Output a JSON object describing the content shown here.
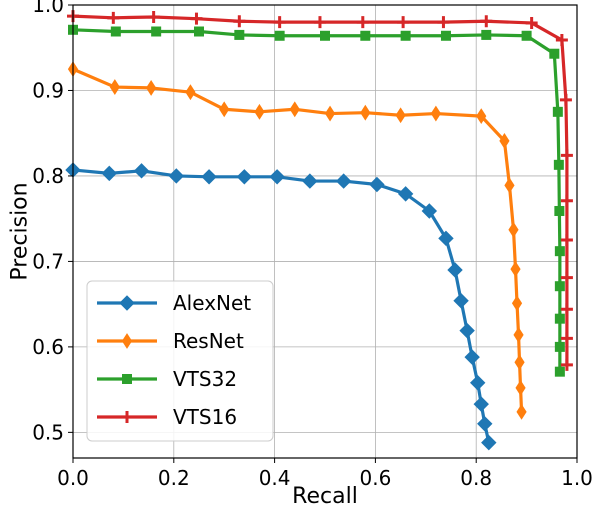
{
  "chart_data": {
    "type": "line",
    "title": "",
    "xlabel": "Recall",
    "ylabel": "Precision",
    "xlim": [
      0.0,
      1.0
    ],
    "ylim": [
      0.47,
      1.0
    ],
    "xticks": [
      {
        "value": 0.0,
        "label": "0.0"
      },
      {
        "value": 0.2,
        "label": "0.2"
      },
      {
        "value": 0.4,
        "label": "0.4"
      },
      {
        "value": 0.6,
        "label": "0.6"
      },
      {
        "value": 0.8,
        "label": "0.8"
      },
      {
        "value": 1.0,
        "label": "1.0"
      }
    ],
    "yticks": [
      {
        "value": 0.5,
        "label": "0.5"
      },
      {
        "value": 0.6,
        "label": "0.6"
      },
      {
        "value": 0.7,
        "label": "0.7"
      },
      {
        "value": 0.8,
        "label": "0.8"
      },
      {
        "value": 0.9,
        "label": "0.9"
      },
      {
        "value": 1.0,
        "label": "1.0"
      }
    ],
    "grid": true,
    "legend_position": "lower-left",
    "series": [
      {
        "name": "AlexNet",
        "color": "#1f77b4",
        "marker": "diamond",
        "points": [
          [
            0.0,
            0.807
          ],
          [
            0.072,
            0.803
          ],
          [
            0.136,
            0.806
          ],
          [
            0.205,
            0.8
          ],
          [
            0.27,
            0.799
          ],
          [
            0.34,
            0.799
          ],
          [
            0.405,
            0.799
          ],
          [
            0.47,
            0.794
          ],
          [
            0.537,
            0.794
          ],
          [
            0.603,
            0.79
          ],
          [
            0.66,
            0.779
          ],
          [
            0.707,
            0.759
          ],
          [
            0.74,
            0.727
          ],
          [
            0.758,
            0.69
          ],
          [
            0.77,
            0.654
          ],
          [
            0.782,
            0.619
          ],
          [
            0.792,
            0.588
          ],
          [
            0.803,
            0.558
          ],
          [
            0.81,
            0.533
          ],
          [
            0.817,
            0.51
          ],
          [
            0.825,
            0.488
          ]
        ]
      },
      {
        "name": "ResNet",
        "color": "#ff7f0e",
        "marker": "thin-diamond",
        "points": [
          [
            0.0,
            0.925
          ],
          [
            0.083,
            0.904
          ],
          [
            0.155,
            0.903
          ],
          [
            0.233,
            0.898
          ],
          [
            0.3,
            0.878
          ],
          [
            0.37,
            0.875
          ],
          [
            0.44,
            0.878
          ],
          [
            0.51,
            0.873
          ],
          [
            0.58,
            0.874
          ],
          [
            0.65,
            0.871
          ],
          [
            0.72,
            0.873
          ],
          [
            0.81,
            0.87
          ],
          [
            0.856,
            0.841
          ],
          [
            0.866,
            0.789
          ],
          [
            0.874,
            0.737
          ],
          [
            0.878,
            0.691
          ],
          [
            0.881,
            0.651
          ],
          [
            0.884,
            0.614
          ],
          [
            0.886,
            0.582
          ],
          [
            0.888,
            0.552
          ],
          [
            0.89,
            0.524
          ]
        ]
      },
      {
        "name": "VTS32",
        "color": "#2ca02c",
        "marker": "square",
        "points": [
          [
            0.0,
            0.971
          ],
          [
            0.085,
            0.969
          ],
          [
            0.165,
            0.969
          ],
          [
            0.25,
            0.969
          ],
          [
            0.33,
            0.965
          ],
          [
            0.41,
            0.964
          ],
          [
            0.5,
            0.964
          ],
          [
            0.58,
            0.964
          ],
          [
            0.66,
            0.964
          ],
          [
            0.74,
            0.964
          ],
          [
            0.82,
            0.965
          ],
          [
            0.9,
            0.964
          ],
          [
            0.955,
            0.943
          ],
          [
            0.962,
            0.875
          ],
          [
            0.964,
            0.813
          ],
          [
            0.965,
            0.759
          ],
          [
            0.966,
            0.712
          ],
          [
            0.966,
            0.671
          ],
          [
            0.966,
            0.633
          ],
          [
            0.966,
            0.6
          ],
          [
            0.966,
            0.571
          ]
        ]
      },
      {
        "name": "VTS16",
        "color": "#d62728",
        "marker": "plus",
        "points": [
          [
            0.0,
            0.987
          ],
          [
            0.08,
            0.985
          ],
          [
            0.16,
            0.986
          ],
          [
            0.245,
            0.984
          ],
          [
            0.33,
            0.981
          ],
          [
            0.41,
            0.98
          ],
          [
            0.49,
            0.98
          ],
          [
            0.575,
            0.98
          ],
          [
            0.655,
            0.98
          ],
          [
            0.735,
            0.98
          ],
          [
            0.82,
            0.981
          ],
          [
            0.91,
            0.979
          ],
          [
            0.97,
            0.959
          ],
          [
            0.978,
            0.889
          ],
          [
            0.98,
            0.824
          ],
          [
            0.98,
            0.771
          ],
          [
            0.98,
            0.725
          ],
          [
            0.98,
            0.681
          ],
          [
            0.98,
            0.644
          ],
          [
            0.98,
            0.61
          ],
          [
            0.98,
            0.579
          ]
        ]
      }
    ]
  }
}
